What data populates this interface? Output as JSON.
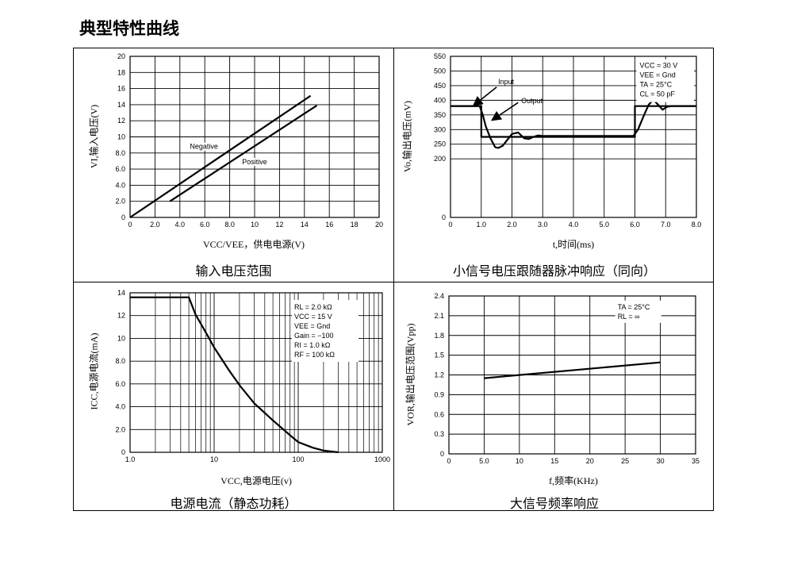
{
  "page_title": "典型特性曲线",
  "chart_data": [
    {
      "id": "c1",
      "type": "line",
      "title": "输入电压范围",
      "xlabel": "VCC/VEE，供电电源(V)",
      "ylabel": "VI,输入电压(V)",
      "xlim": [
        0,
        20
      ],
      "ylim": [
        0,
        20
      ],
      "grid": true,
      "xticks": [
        0,
        2,
        4,
        6,
        8,
        10,
        12,
        14,
        16,
        18,
        20
      ],
      "xtick_labels": [
        "0",
        "2.0",
        "4.0",
        "6.0",
        "8.0",
        "10",
        "12",
        "14",
        "16",
        "18",
        "20"
      ],
      "yticks": [
        0,
        2,
        4,
        6,
        8,
        10,
        12,
        14,
        16,
        18,
        20
      ],
      "ytick_labels": [
        "0",
        "2.0",
        "4.0",
        "6.0",
        "8.0",
        "10",
        "12",
        "14",
        "16",
        "18",
        "20"
      ],
      "series": [
        {
          "name": "Negative",
          "x": [
            0,
            14.5
          ],
          "y": [
            0,
            15.1
          ]
        },
        {
          "name": "Positive",
          "x": [
            3.2,
            15
          ],
          "y": [
            2.0,
            13.9
          ]
        }
      ],
      "annotations": [
        "Negative",
        "Positive"
      ]
    },
    {
      "id": "c2",
      "type": "line",
      "title": "小信号电压跟随器脉冲响应（同向）",
      "xlabel": "t,时间(ms)",
      "ylabel": "Vo,输出电压(mV)",
      "xlim": [
        0,
        8
      ],
      "ylim": [
        0,
        550
      ],
      "grid": true,
      "xticks": [
        0,
        1,
        2,
        3,
        4,
        5,
        6,
        7,
        8
      ],
      "xtick_labels": [
        "0",
        "1.0",
        "2.0",
        "3.0",
        "4.0",
        "5.0",
        "6.0",
        "7.0",
        "8.0"
      ],
      "yticks": [
        0,
        200,
        250,
        300,
        350,
        400,
        450,
        500,
        550
      ],
      "ytick_labels": [
        "0",
        "200",
        "250",
        "300",
        "350",
        "400",
        "450",
        "500",
        "550"
      ],
      "series": [
        {
          "name": "Input",
          "x": [
            0,
            1.0,
            1.0,
            6.0,
            6.0,
            8.0
          ],
          "y": [
            380,
            380,
            275,
            275,
            380,
            380
          ]
        },
        {
          "name": "Output",
          "x": [
            0,
            0.95,
            1.05,
            1.15,
            1.3,
            1.45,
            1.55,
            1.7,
            1.85,
            2.0,
            2.2,
            2.4,
            2.55,
            2.7,
            2.85,
            3.0,
            5.95,
            6.1,
            6.3,
            6.45,
            6.6,
            6.75,
            6.9,
            7.05,
            7.2,
            8.0
          ],
          "y": [
            380,
            380,
            350,
            310,
            270,
            240,
            237,
            245,
            265,
            285,
            290,
            270,
            268,
            275,
            280,
            278,
            278,
            300,
            350,
            385,
            402,
            385,
            368,
            378,
            380,
            380
          ]
        }
      ],
      "legend_box": [
        "VCC = 30 V",
        "VEE = Gnd",
        "TA = 25°C",
        "CL = 50 pF"
      ],
      "annotations": [
        "Input",
        "Output"
      ]
    },
    {
      "id": "c3",
      "type": "line",
      "title": "电源电流（静态功耗）",
      "xlabel": "VCC,电源电压(v)",
      "ylabel": "ICC,电源电流(mA)",
      "xscale": "log",
      "xlim": [
        1,
        1000
      ],
      "ylim": [
        0,
        14
      ],
      "grid": true,
      "xticks": [
        1,
        10,
        100,
        1000
      ],
      "xtick_labels": [
        "1.0",
        "10",
        "100",
        "1000"
      ],
      "yticks": [
        0,
        2,
        4,
        6,
        8,
        10,
        12,
        14
      ],
      "ytick_labels": [
        "0",
        "2.0",
        "4.0",
        "6.0",
        "8.0",
        "10",
        "12",
        "14"
      ],
      "series": [
        {
          "name": "",
          "x": [
            1,
            5,
            6,
            8,
            10,
            15,
            20,
            30,
            50,
            80,
            100,
            150,
            200,
            300
          ],
          "y": [
            13.6,
            13.6,
            12.1,
            10.5,
            9.2,
            7.2,
            5.9,
            4.3,
            2.8,
            1.5,
            0.9,
            0.4,
            0.15,
            0
          ]
        }
      ],
      "legend_box": [
        "RL = 2.0 kΩ",
        "VCC = 15 V",
        "VEE = Gnd",
        "Gain = −100",
        "RI = 1.0 kΩ",
        "RF = 100 kΩ"
      ]
    },
    {
      "id": "c4",
      "type": "line",
      "title": "大信号频率响应",
      "xlabel": "f,频率(KHz)",
      "ylabel": "VOR,输出电压范围(Vpp)",
      "xlim": [
        0,
        35
      ],
      "ylim": [
        0,
        2.4
      ],
      "grid": true,
      "xticks": [
        0,
        5,
        10,
        15,
        20,
        25,
        30,
        35
      ],
      "xtick_labels": [
        "0",
        "5.0",
        "10",
        "15",
        "20",
        "25",
        "30",
        "35"
      ],
      "yticks": [
        0,
        0.3,
        0.6,
        0.9,
        1.2,
        1.5,
        1.8,
        2.1,
        2.4
      ],
      "ytick_labels": [
        "0",
        "0.3",
        "0.6",
        "0.9",
        "1.2",
        "1.5",
        "1.8",
        "2.1",
        "2.4"
      ],
      "series": [
        {
          "name": "",
          "x": [
            5,
            30
          ],
          "y": [
            1.15,
            1.39
          ]
        }
      ],
      "legend_box": [
        "TA = 25°C",
        "RL = ∞"
      ]
    }
  ]
}
